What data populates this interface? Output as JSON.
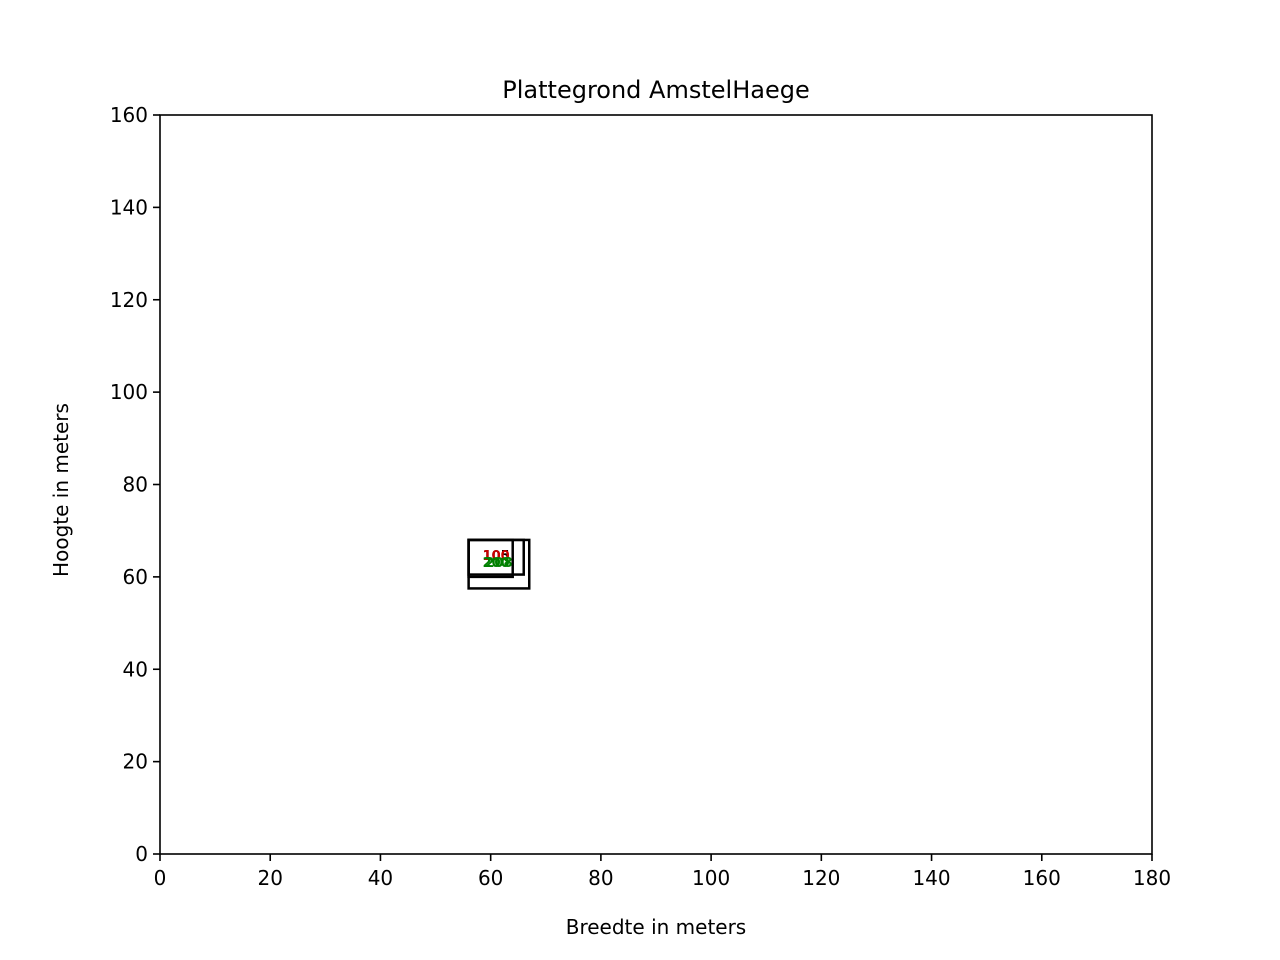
{
  "chart_data": {
    "type": "scatter",
    "title": "Plattegrond AmstelHaege",
    "xlabel": "Breedte in meters",
    "ylabel": "Hoogte in meters",
    "xlim": [
      0,
      180
    ],
    "ylim": [
      0,
      160
    ],
    "xticks": [
      0,
      20,
      40,
      60,
      80,
      100,
      120,
      140,
      160,
      180
    ],
    "yticks": [
      0,
      20,
      40,
      60,
      80,
      100,
      120,
      140,
      160
    ],
    "grid": false,
    "legend": "none",
    "rectangles": [
      {
        "x0": 56,
        "y0": 57.5,
        "x1": 67,
        "y1": 68
      },
      {
        "x0": 56,
        "y0": 60,
        "x1": 64,
        "y1": 68
      },
      {
        "x0": 56,
        "y0": 60.5,
        "x1": 66,
        "y1": 68
      }
    ],
    "labels": [
      {
        "text": "105",
        "x": 61,
        "y": 64.5,
        "color": "#000000"
      },
      {
        "text": "100",
        "x": 61,
        "y": 64.5,
        "color": "#cc0000"
      },
      {
        "text": "208",
        "x": 61.5,
        "y": 63,
        "color": "#008000"
      },
      {
        "text": "200",
        "x": 61,
        "y": 63,
        "color": "#008000"
      }
    ]
  }
}
